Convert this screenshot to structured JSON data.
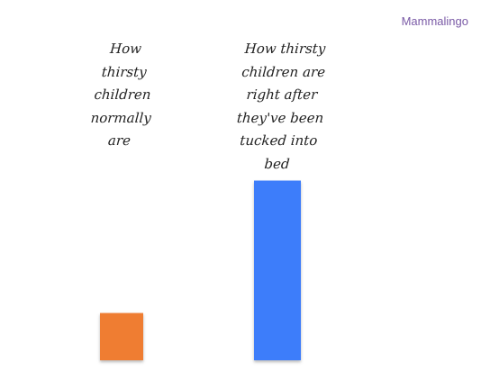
{
  "brand": "Mammalingo",
  "colors": {
    "background": "#ffffff",
    "brand_text": "#7a5aa6",
    "label_text": "#222222"
  },
  "chart_data": {
    "type": "bar",
    "categories": [
      "How thirsty children normally are",
      "How thirsty children are right after they've been tucked into bed"
    ],
    "category_lines": [
      [
        "How",
        "thirsty",
        "children",
        "normally",
        "are"
      ],
      [
        "How thirsty",
        "children are",
        "right after",
        "they've been",
        "tucked into",
        "bed"
      ]
    ],
    "values": [
      1,
      3.8
    ],
    "colors": [
      "#ef7d32",
      "#3d7dfa"
    ],
    "ylim": [
      0,
      4
    ],
    "title": "",
    "xlabel": "",
    "ylabel": "",
    "grid": false,
    "axes_visible": false
  }
}
